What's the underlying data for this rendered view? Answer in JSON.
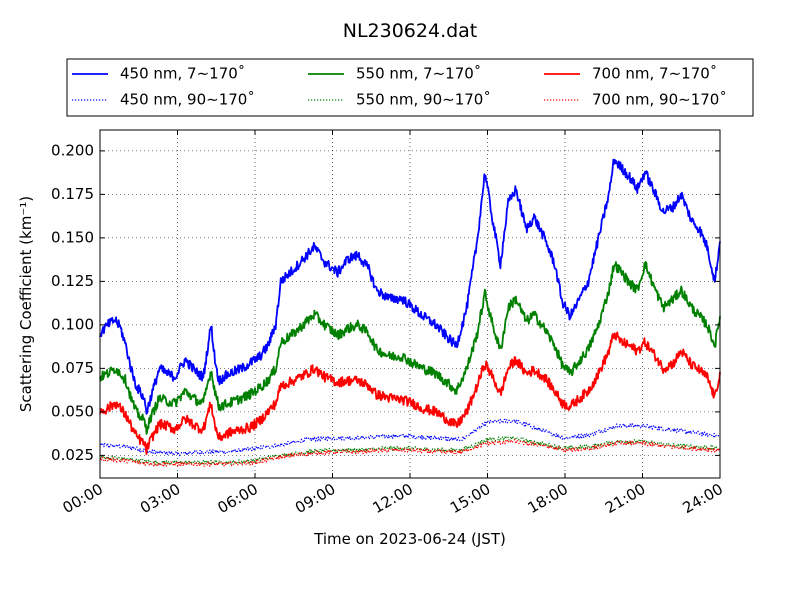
{
  "chart_data": {
    "type": "line",
    "title": "NL230624.dat",
    "xlabel": "Time on 2023-06-24 (JST)",
    "ylabel": "Scattering Coefficient (km⁻¹)",
    "xlim": [
      0,
      24
    ],
    "ylim": [
      0.012,
      0.212
    ],
    "x_ticks": [
      0,
      3,
      6,
      9,
      12,
      15,
      18,
      21,
      24
    ],
    "x_tick_labels": [
      "00:00",
      "03:00",
      "06:00",
      "09:00",
      "12:00",
      "15:00",
      "18:00",
      "21:00",
      "24:00"
    ],
    "y_ticks": [
      0.025,
      0.05,
      0.075,
      0.1,
      0.125,
      0.15,
      0.175,
      0.2
    ],
    "y_tick_labels": [
      "0.025",
      "0.050",
      "0.075",
      "0.100",
      "0.125",
      "0.150",
      "0.175",
      "0.200"
    ],
    "grid": true,
    "legend_position": "top",
    "series": [
      {
        "name": "450 nm, 7∼170˚",
        "color": "#0000ff",
        "style": "solid",
        "points": [
          [
            0,
            0.095
          ],
          [
            0.3,
            0.1
          ],
          [
            0.6,
            0.103
          ],
          [
            0.8,
            0.098
          ],
          [
            1,
            0.088
          ],
          [
            1.2,
            0.075
          ],
          [
            1.4,
            0.065
          ],
          [
            1.7,
            0.058
          ],
          [
            1.8,
            0.05
          ],
          [
            2,
            0.06
          ],
          [
            2.3,
            0.075
          ],
          [
            2.6,
            0.072
          ],
          [
            2.9,
            0.07
          ],
          [
            3.3,
            0.08
          ],
          [
            3.6,
            0.075
          ],
          [
            3.8,
            0.072
          ],
          [
            4,
            0.07
          ],
          [
            4.15,
            0.085
          ],
          [
            4.3,
            0.1
          ],
          [
            4.45,
            0.08
          ],
          [
            4.6,
            0.068
          ],
          [
            5,
            0.072
          ],
          [
            5.5,
            0.075
          ],
          [
            5.8,
            0.078
          ],
          [
            6.2,
            0.082
          ],
          [
            6.5,
            0.088
          ],
          [
            6.8,
            0.1
          ],
          [
            7,
            0.125
          ],
          [
            7.5,
            0.132
          ],
          [
            8,
            0.14
          ],
          [
            8.3,
            0.145
          ],
          [
            8.7,
            0.136
          ],
          [
            9.2,
            0.13
          ],
          [
            9.6,
            0.138
          ],
          [
            10,
            0.14
          ],
          [
            10.4,
            0.132
          ],
          [
            10.7,
            0.12
          ],
          [
            11.2,
            0.115
          ],
          [
            11.7,
            0.115
          ],
          [
            12.1,
            0.11
          ],
          [
            12.5,
            0.105
          ],
          [
            13,
            0.1
          ],
          [
            13.5,
            0.092
          ],
          [
            13.8,
            0.088
          ],
          [
            14.2,
            0.11
          ],
          [
            14.6,
            0.148
          ],
          [
            14.9,
            0.188
          ],
          [
            15.2,
            0.16
          ],
          [
            15.5,
            0.135
          ],
          [
            15.8,
            0.17
          ],
          [
            16.1,
            0.178
          ],
          [
            16.5,
            0.155
          ],
          [
            16.8,
            0.162
          ],
          [
            17.2,
            0.15
          ],
          [
            17.6,
            0.135
          ],
          [
            17.9,
            0.113
          ],
          [
            18.2,
            0.105
          ],
          [
            18.5,
            0.113
          ],
          [
            18.9,
            0.125
          ],
          [
            19.3,
            0.15
          ],
          [
            19.7,
            0.175
          ],
          [
            19.9,
            0.195
          ],
          [
            20.2,
            0.19
          ],
          [
            20.5,
            0.185
          ],
          [
            20.8,
            0.178
          ],
          [
            21.1,
            0.188
          ],
          [
            21.5,
            0.175
          ],
          [
            21.8,
            0.165
          ],
          [
            22.2,
            0.168
          ],
          [
            22.5,
            0.175
          ],
          [
            22.9,
            0.16
          ],
          [
            23.2,
            0.155
          ],
          [
            23.5,
            0.145
          ],
          [
            23.8,
            0.125
          ],
          [
            24,
            0.148
          ]
        ]
      },
      {
        "name": "550 nm, 7∼170˚",
        "color": "#008000",
        "style": "solid",
        "points": [
          [
            0,
            0.07
          ],
          [
            0.3,
            0.072
          ],
          [
            0.6,
            0.075
          ],
          [
            0.8,
            0.072
          ],
          [
            1,
            0.068
          ],
          [
            1.2,
            0.058
          ],
          [
            1.4,
            0.05
          ],
          [
            1.7,
            0.045
          ],
          [
            1.8,
            0.04
          ],
          [
            2,
            0.048
          ],
          [
            2.3,
            0.058
          ],
          [
            2.6,
            0.056
          ],
          [
            2.9,
            0.055
          ],
          [
            3.3,
            0.062
          ],
          [
            3.6,
            0.058
          ],
          [
            3.8,
            0.056
          ],
          [
            4,
            0.055
          ],
          [
            4.15,
            0.065
          ],
          [
            4.3,
            0.074
          ],
          [
            4.45,
            0.062
          ],
          [
            4.6,
            0.053
          ],
          [
            5,
            0.055
          ],
          [
            5.5,
            0.058
          ],
          [
            5.8,
            0.06
          ],
          [
            6.2,
            0.064
          ],
          [
            6.5,
            0.068
          ],
          [
            6.8,
            0.075
          ],
          [
            7,
            0.09
          ],
          [
            7.5,
            0.095
          ],
          [
            8,
            0.102
          ],
          [
            8.3,
            0.106
          ],
          [
            8.7,
            0.1
          ],
          [
            9.2,
            0.094
          ],
          [
            9.6,
            0.098
          ],
          [
            10,
            0.1
          ],
          [
            10.4,
            0.095
          ],
          [
            10.7,
            0.086
          ],
          [
            11.2,
            0.082
          ],
          [
            11.7,
            0.082
          ],
          [
            12.1,
            0.078
          ],
          [
            12.5,
            0.075
          ],
          [
            13,
            0.072
          ],
          [
            13.5,
            0.066
          ],
          [
            13.8,
            0.062
          ],
          [
            14.2,
            0.075
          ],
          [
            14.6,
            0.095
          ],
          [
            14.9,
            0.118
          ],
          [
            15.2,
            0.1
          ],
          [
            15.5,
            0.085
          ],
          [
            15.8,
            0.11
          ],
          [
            16.1,
            0.115
          ],
          [
            16.5,
            0.102
          ],
          [
            16.8,
            0.106
          ],
          [
            17.2,
            0.098
          ],
          [
            17.6,
            0.088
          ],
          [
            17.9,
            0.077
          ],
          [
            18.2,
            0.072
          ],
          [
            18.5,
            0.078
          ],
          [
            18.9,
            0.086
          ],
          [
            19.3,
            0.1
          ],
          [
            19.7,
            0.12
          ],
          [
            19.9,
            0.135
          ],
          [
            20.2,
            0.13
          ],
          [
            20.5,
            0.124
          ],
          [
            20.8,
            0.12
          ],
          [
            21.1,
            0.135
          ],
          [
            21.5,
            0.12
          ],
          [
            21.8,
            0.11
          ],
          [
            22.2,
            0.115
          ],
          [
            22.5,
            0.12
          ],
          [
            22.9,
            0.11
          ],
          [
            23.2,
            0.105
          ],
          [
            23.5,
            0.1
          ],
          [
            23.8,
            0.088
          ],
          [
            24,
            0.105
          ]
        ]
      },
      {
        "name": "700 nm, 7∼170˚",
        "color": "#ff0000",
        "style": "solid",
        "points": [
          [
            0,
            0.05
          ],
          [
            0.3,
            0.052
          ],
          [
            0.6,
            0.055
          ],
          [
            0.8,
            0.052
          ],
          [
            1,
            0.048
          ],
          [
            1.2,
            0.042
          ],
          [
            1.4,
            0.036
          ],
          [
            1.7,
            0.032
          ],
          [
            1.8,
            0.028
          ],
          [
            2,
            0.035
          ],
          [
            2.3,
            0.043
          ],
          [
            2.6,
            0.042
          ],
          [
            2.9,
            0.04
          ],
          [
            3.3,
            0.046
          ],
          [
            3.6,
            0.043
          ],
          [
            3.8,
            0.041
          ],
          [
            4,
            0.04
          ],
          [
            4.15,
            0.048
          ],
          [
            4.3,
            0.055
          ],
          [
            4.45,
            0.042
          ],
          [
            4.6,
            0.035
          ],
          [
            5,
            0.038
          ],
          [
            5.5,
            0.04
          ],
          [
            5.8,
            0.041
          ],
          [
            6.2,
            0.045
          ],
          [
            6.5,
            0.05
          ],
          [
            6.8,
            0.055
          ],
          [
            7,
            0.065
          ],
          [
            7.5,
            0.068
          ],
          [
            8,
            0.072
          ],
          [
            8.3,
            0.075
          ],
          [
            8.7,
            0.07
          ],
          [
            9.2,
            0.067
          ],
          [
            9.6,
            0.068
          ],
          [
            10,
            0.068
          ],
          [
            10.4,
            0.065
          ],
          [
            10.7,
            0.06
          ],
          [
            11.2,
            0.058
          ],
          [
            11.7,
            0.057
          ],
          [
            12.1,
            0.055
          ],
          [
            12.5,
            0.052
          ],
          [
            13,
            0.05
          ],
          [
            13.5,
            0.045
          ],
          [
            13.8,
            0.042
          ],
          [
            14.2,
            0.05
          ],
          [
            14.6,
            0.065
          ],
          [
            14.9,
            0.078
          ],
          [
            15.2,
            0.07
          ],
          [
            15.5,
            0.06
          ],
          [
            15.8,
            0.075
          ],
          [
            16.1,
            0.08
          ],
          [
            16.5,
            0.072
          ],
          [
            16.8,
            0.074
          ],
          [
            17.2,
            0.07
          ],
          [
            17.6,
            0.062
          ],
          [
            17.9,
            0.055
          ],
          [
            18.2,
            0.053
          ],
          [
            18.5,
            0.057
          ],
          [
            18.9,
            0.062
          ],
          [
            19.3,
            0.072
          ],
          [
            19.7,
            0.085
          ],
          [
            19.9,
            0.095
          ],
          [
            20.2,
            0.09
          ],
          [
            20.5,
            0.088
          ],
          [
            20.8,
            0.085
          ],
          [
            21.1,
            0.09
          ],
          [
            21.5,
            0.082
          ],
          [
            21.8,
            0.075
          ],
          [
            22.2,
            0.078
          ],
          [
            22.5,
            0.085
          ],
          [
            22.9,
            0.077
          ],
          [
            23.2,
            0.074
          ],
          [
            23.5,
            0.07
          ],
          [
            23.8,
            0.058
          ],
          [
            24,
            0.073
          ]
        ]
      },
      {
        "name": "450 nm, 90∼170˚",
        "color": "#0000ff",
        "style": "dotted",
        "points": [
          [
            0,
            0.031
          ],
          [
            1,
            0.03
          ],
          [
            2,
            0.027
          ],
          [
            3,
            0.026
          ],
          [
            4,
            0.027
          ],
          [
            5,
            0.027
          ],
          [
            6,
            0.029
          ],
          [
            7,
            0.031
          ],
          [
            8,
            0.034
          ],
          [
            9,
            0.035
          ],
          [
            10,
            0.035
          ],
          [
            11,
            0.036
          ],
          [
            12,
            0.036
          ],
          [
            13,
            0.035
          ],
          [
            14,
            0.034
          ],
          [
            15,
            0.044
          ],
          [
            16,
            0.045
          ],
          [
            17,
            0.04
          ],
          [
            18,
            0.035
          ],
          [
            19,
            0.037
          ],
          [
            20,
            0.042
          ],
          [
            21,
            0.042
          ],
          [
            22,
            0.04
          ],
          [
            23,
            0.038
          ],
          [
            24,
            0.036
          ]
        ]
      },
      {
        "name": "550 nm, 90∼170˚",
        "color": "#008000",
        "style": "dotted",
        "points": [
          [
            0,
            0.024
          ],
          [
            1,
            0.023
          ],
          [
            2,
            0.021
          ],
          [
            3,
            0.021
          ],
          [
            4,
            0.021
          ],
          [
            5,
            0.021
          ],
          [
            6,
            0.022
          ],
          [
            7,
            0.025
          ],
          [
            8,
            0.027
          ],
          [
            9,
            0.028
          ],
          [
            10,
            0.028
          ],
          [
            11,
            0.029
          ],
          [
            12,
            0.029
          ],
          [
            13,
            0.028
          ],
          [
            14,
            0.028
          ],
          [
            15,
            0.034
          ],
          [
            16,
            0.035
          ],
          [
            17,
            0.032
          ],
          [
            18,
            0.029
          ],
          [
            19,
            0.03
          ],
          [
            20,
            0.033
          ],
          [
            21,
            0.033
          ],
          [
            22,
            0.031
          ],
          [
            23,
            0.03
          ],
          [
            24,
            0.029
          ]
        ]
      },
      {
        "name": "700 nm, 90∼170˚",
        "color": "#ff0000",
        "style": "dotted",
        "points": [
          [
            0,
            0.023
          ],
          [
            1,
            0.022
          ],
          [
            2,
            0.02
          ],
          [
            3,
            0.02
          ],
          [
            4,
            0.02
          ],
          [
            5,
            0.02
          ],
          [
            6,
            0.021
          ],
          [
            7,
            0.024
          ],
          [
            8,
            0.026
          ],
          [
            9,
            0.027
          ],
          [
            10,
            0.027
          ],
          [
            11,
            0.028
          ],
          [
            12,
            0.028
          ],
          [
            13,
            0.027
          ],
          [
            14,
            0.027
          ],
          [
            15,
            0.032
          ],
          [
            16,
            0.033
          ],
          [
            17,
            0.031
          ],
          [
            18,
            0.028
          ],
          [
            19,
            0.029
          ],
          [
            20,
            0.032
          ],
          [
            21,
            0.032
          ],
          [
            22,
            0.03
          ],
          [
            23,
            0.029
          ],
          [
            24,
            0.028
          ]
        ]
      }
    ]
  }
}
